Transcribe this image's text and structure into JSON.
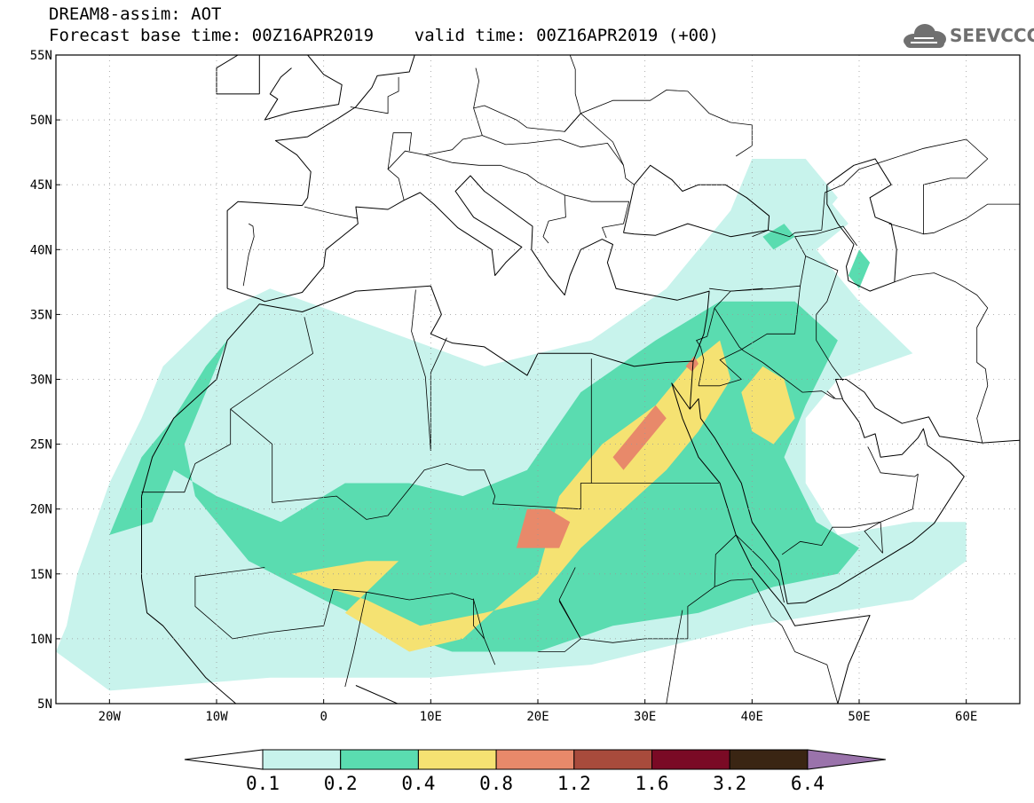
{
  "title": {
    "line1": "DREAM8-assim: AOT",
    "line2": "Forecast base time: 00Z16APR2019    valid time: 00Z16APR2019 (+00)"
  },
  "logo": {
    "text": "SEEVCCC",
    "icon": "cloud-icon",
    "color": "#707070"
  },
  "axes": {
    "lon_ticks": [
      "20W",
      "10W",
      "0",
      "10E",
      "20E",
      "30E",
      "40E",
      "50E",
      "60E"
    ],
    "lon_values": [
      -20,
      -10,
      0,
      10,
      20,
      30,
      40,
      50,
      60
    ],
    "lat_ticks": [
      "55N",
      "50N",
      "45N",
      "40N",
      "35N",
      "30N",
      "25N",
      "20N",
      "15N",
      "10N",
      "5N"
    ],
    "lat_values": [
      55,
      50,
      45,
      40,
      35,
      30,
      25,
      20,
      15,
      10,
      5
    ],
    "lon_range": [
      -25,
      65
    ],
    "lat_range": [
      5,
      55
    ],
    "grid": "dotted"
  },
  "colorbar": {
    "levels": [
      "0.1",
      "0.2",
      "0.4",
      "0.8",
      "1.2",
      "1.6",
      "3.2",
      "6.4"
    ],
    "colors": [
      "#c8f3ec",
      "#5adcb0",
      "#f5e272",
      "#e8896a",
      "#a84b3c",
      "#7a0a25",
      "#3a2513",
      "#9a73ab"
    ],
    "under_color": "#ffffff"
  },
  "chart_data": {
    "type": "heatmap",
    "variable": "AOT",
    "model": "DREAM8-assim",
    "base_time": "00Z16APR2019",
    "valid_time": "00Z16APR2019",
    "lead": "+00",
    "lon_range": [
      -25,
      65
    ],
    "lat_range": [
      5,
      55
    ],
    "levels": [
      0.1,
      0.2,
      0.4,
      0.8,
      1.2,
      1.6,
      3.2,
      6.4
    ],
    "regions": [
      {
        "level": 0.1,
        "polygon": [
          [
            -25,
            9
          ],
          [
            -20,
            6
          ],
          [
            -5,
            7
          ],
          [
            10,
            7
          ],
          [
            25,
            8
          ],
          [
            40,
            11
          ],
          [
            55,
            13
          ],
          [
            60,
            16
          ],
          [
            60,
            19
          ],
          [
            55,
            19
          ],
          [
            48,
            18
          ],
          [
            45,
            22
          ],
          [
            45,
            27
          ],
          [
            48,
            30
          ],
          [
            55,
            32
          ],
          [
            50,
            36
          ],
          [
            45,
            41
          ],
          [
            48,
            44
          ],
          [
            45,
            47
          ],
          [
            40,
            47
          ],
          [
            38,
            43
          ],
          [
            32,
            37
          ],
          [
            25,
            33
          ],
          [
            15,
            31
          ],
          [
            5,
            34
          ],
          [
            -5,
            37
          ],
          [
            -10,
            35
          ],
          [
            -15,
            31
          ],
          [
            -17,
            27
          ],
          [
            -20,
            22
          ],
          [
            -23,
            15
          ],
          [
            -24,
            11
          ]
        ]
      },
      {
        "level": 0.2,
        "polygon": [
          [
            -20,
            18
          ],
          [
            -17,
            24
          ],
          [
            -14,
            27
          ],
          [
            -11,
            31
          ],
          [
            -9,
            33
          ],
          [
            -11,
            29
          ],
          [
            -13,
            25
          ],
          [
            -12,
            21
          ],
          [
            -7,
            16
          ],
          [
            0,
            13
          ],
          [
            5,
            11
          ],
          [
            12,
            9
          ],
          [
            20,
            9
          ],
          [
            27,
            11
          ],
          [
            35,
            12
          ],
          [
            42,
            14
          ],
          [
            48,
            15
          ],
          [
            50,
            17
          ],
          [
            46,
            19
          ],
          [
            43,
            24
          ],
          [
            45,
            28
          ],
          [
            48,
            33
          ],
          [
            44,
            36
          ],
          [
            37,
            36
          ],
          [
            31,
            33
          ],
          [
            24,
            29
          ],
          [
            19,
            23
          ],
          [
            13,
            21
          ],
          [
            8,
            22
          ],
          [
            2,
            22
          ],
          [
            -4,
            19
          ],
          [
            -10,
            21
          ],
          [
            -14,
            23
          ],
          [
            -16,
            19
          ]
        ]
      },
      {
        "level": 0.4,
        "polygon": [
          [
            2,
            12
          ],
          [
            8,
            9
          ],
          [
            13,
            10
          ],
          [
            17,
            13
          ],
          [
            20,
            15
          ],
          [
            22,
            21
          ],
          [
            26,
            25
          ],
          [
            31,
            28
          ],
          [
            34,
            31
          ],
          [
            37,
            33
          ],
          [
            38,
            30
          ],
          [
            35,
            26
          ],
          [
            32,
            23
          ],
          [
            28,
            20
          ],
          [
            24,
            17
          ],
          [
            20,
            13
          ],
          [
            15,
            12
          ],
          [
            9,
            11
          ],
          [
            4,
            13
          ],
          [
            0,
            14
          ],
          [
            -3,
            15
          ],
          [
            4,
            16
          ],
          [
            7,
            16
          ]
        ]
      },
      {
        "level": 0.4,
        "polygon": [
          [
            39,
            29
          ],
          [
            41,
            31
          ],
          [
            43,
            30
          ],
          [
            44,
            27
          ],
          [
            42,
            25
          ],
          [
            40,
            26
          ]
        ]
      },
      {
        "level": 0.8,
        "polygon": [
          [
            27,
            24
          ],
          [
            29,
            26
          ],
          [
            31,
            28
          ],
          [
            32,
            27
          ],
          [
            30,
            25
          ],
          [
            28,
            23
          ]
        ]
      },
      {
        "level": 0.8,
        "polygon": [
          [
            18,
            17
          ],
          [
            20,
            17
          ],
          [
            22,
            17
          ],
          [
            23,
            19
          ],
          [
            21,
            20
          ],
          [
            19,
            20
          ]
        ]
      },
      {
        "level": 0.8,
        "polygon": [
          [
            33.8,
            31
          ],
          [
            34.6,
            31.8
          ],
          [
            35,
            31.2
          ],
          [
            34.4,
            30.6
          ]
        ]
      },
      {
        "level": 0.1,
        "polygon": [
          [
            38,
            41
          ],
          [
            41,
            42
          ],
          [
            44,
            43
          ],
          [
            47,
            44
          ],
          [
            49,
            42
          ],
          [
            46,
            40
          ],
          [
            42,
            40
          ],
          [
            39,
            40
          ]
        ]
      },
      {
        "level": 0.2,
        "polygon": [
          [
            41,
            41
          ],
          [
            43,
            42
          ],
          [
            44,
            41
          ],
          [
            42,
            40
          ]
        ]
      },
      {
        "level": 0.2,
        "polygon": [
          [
            49,
            38
          ],
          [
            50,
            40
          ],
          [
            51,
            39
          ],
          [
            50,
            37
          ]
        ]
      }
    ]
  }
}
